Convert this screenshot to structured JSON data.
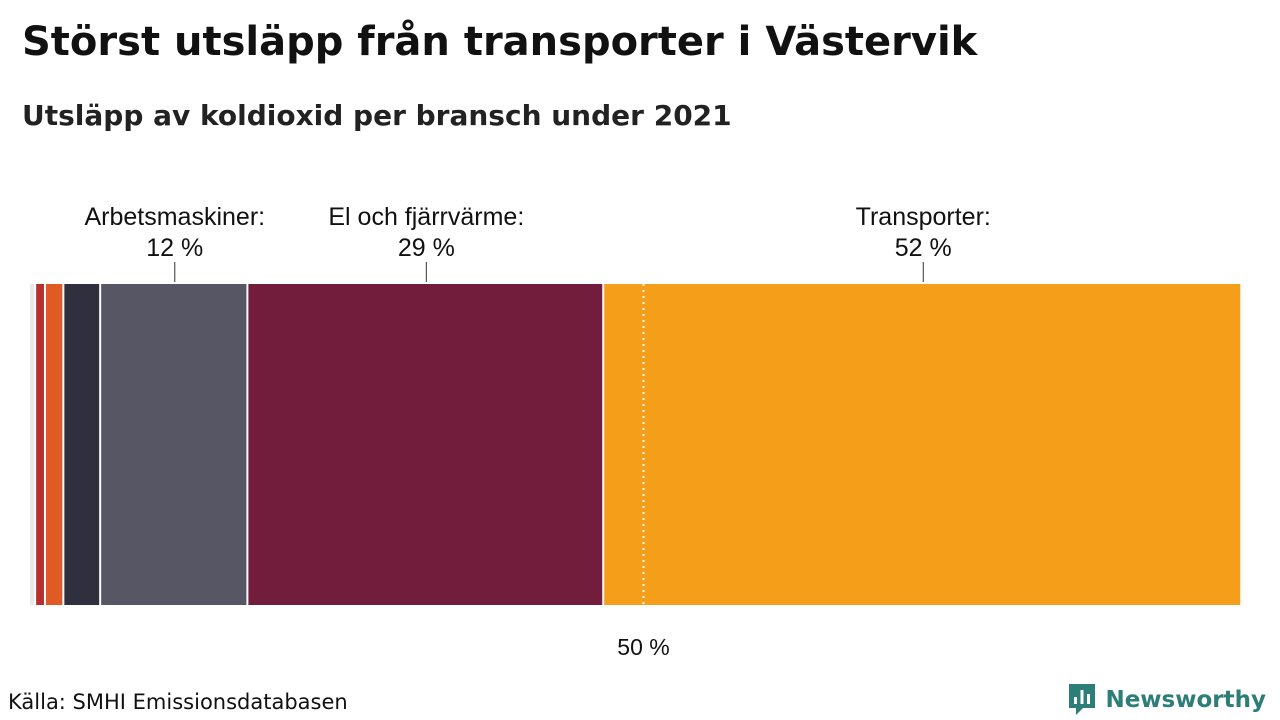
{
  "title": "Störst utsläpp från transporter i Västervik",
  "subtitle": "Utsläpp av koldioxid per bransch under 2021",
  "source": "Källa: SMHI Emissionsdatabasen",
  "brand": {
    "name": "Newsworthy",
    "icon": "chart-speech-bubble-icon",
    "color": "#2d7d78"
  },
  "chart_data": {
    "type": "bar",
    "orientation": "horizontal-stacked-100",
    "title": "Störst utsläpp från transporter i Västervik",
    "subtitle": "Utsläpp av koldioxid per bransch under 2021",
    "xlim": [
      0,
      100
    ],
    "reference_line": {
      "value": 50,
      "label": "50 %",
      "style": "dotted"
    },
    "segments": [
      {
        "name": "",
        "value": 0.5,
        "color": "#e8e8e8"
      },
      {
        "name": "",
        "value": 0.8,
        "color": "#b5302f"
      },
      {
        "name": "",
        "value": 1.5,
        "color": "#e05a26"
      },
      {
        "name": "",
        "value": 3.0,
        "color": "#2f2f3d"
      },
      {
        "name": "Arbetsmaskiner:",
        "value": 12,
        "value_label": "12 %",
        "color": "#575665"
      },
      {
        "name": "El och fjärrvärme:",
        "value": 29,
        "value_label": "29 %",
        "color": "#711d3b"
      },
      {
        "name": "Transporter:",
        "value": 52,
        "value_label": "52 %",
        "color": "#f59e1a"
      }
    ]
  }
}
